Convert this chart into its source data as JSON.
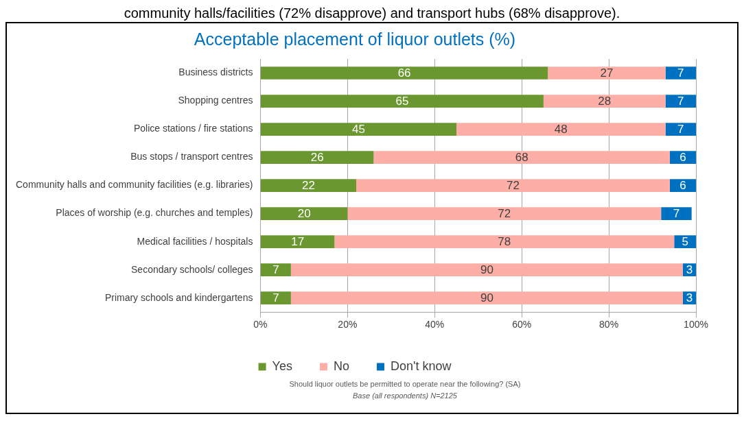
{
  "chart_data": {
    "type": "bar",
    "orientation": "horizontal",
    "stacked": true,
    "title": "Acceptable placement of liquor outlets (%)",
    "categories": [
      "Business districts",
      "Shopping centres",
      "Police stations / fire stations",
      "Bus stops / transport centres",
      "Community halls and community facilities (e.g. libraries)",
      "Places of worship (e.g. churches and temples)",
      "Medical facilities / hospitals",
      "Secondary schools/ colleges",
      "Primary schools and kindergartens"
    ],
    "series": [
      {
        "name": "Yes",
        "color": "#6a972f",
        "values": [
          66,
          65,
          45,
          26,
          22,
          20,
          17,
          7,
          7
        ]
      },
      {
        "name": "No",
        "color": "#fdafa7",
        "values": [
          27,
          28,
          48,
          68,
          72,
          72,
          78,
          90,
          90
        ]
      },
      {
        "name": "Don't know",
        "color": "#0070c0",
        "values": [
          7,
          7,
          7,
          6,
          6,
          7,
          5,
          3,
          3
        ]
      }
    ],
    "xlim": [
      0,
      100
    ],
    "xticks": [
      {
        "value": 0,
        "label": "0%"
      },
      {
        "value": 20,
        "label": "20%"
      },
      {
        "value": 40,
        "label": "40%"
      },
      {
        "value": 60,
        "label": "60%"
      },
      {
        "value": 80,
        "label": "80%"
      },
      {
        "value": 100,
        "label": "100%"
      }
    ],
    "grid": "x",
    "legend": "bottom",
    "data_labels": true,
    "annotations": [
      "community halls/facilities (72% disapprove) and transport hubs (68% disapprove).",
      "Should liquor outlets be permitted to operate near the following? (SA)",
      "Base (all respondents) N=2125"
    ]
  }
}
